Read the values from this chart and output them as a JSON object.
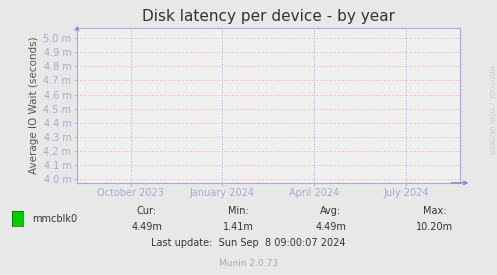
{
  "title": "Disk latency per device - by year",
  "ylabel": "Average IO Wait (seconds)",
  "yticks": [
    4.0,
    4.1,
    4.2,
    4.3,
    4.4,
    4.5,
    4.6,
    4.7,
    4.8,
    4.9,
    5.0
  ],
  "ytick_labels": [
    "4.0 m",
    "4.1 m",
    "4.2 m",
    "4.3 m",
    "4.4 m",
    "4.5 m",
    "4.6 m",
    "4.7 m",
    "4.8 m",
    "4.9 m",
    "5.0 m"
  ],
  "ylim": [
    3.975,
    5.075
  ],
  "xtick_labels": [
    "October 2023",
    "January 2024",
    "April 2024",
    "July 2024"
  ],
  "xtick_positions": [
    0.14,
    0.38,
    0.62,
    0.86
  ],
  "background_color": "#e8e8e8",
  "plot_bg_color": "#f0f0f0",
  "grid_color": "#ffaaaa",
  "grid_color_v": "#aaaacc",
  "title_color": "#333333",
  "axis_color": "#aaaacc",
  "legend_label": "mmcblk0",
  "legend_color": "#00cc00",
  "stats_cur": "4.49m",
  "stats_min": "1.41m",
  "stats_avg": "4.49m",
  "stats_max": "10.20m",
  "last_update": "Last update:  Sun Sep  8 09:00:07 2024",
  "munin_version": "Munin 2.0.73",
  "watermark": "RRDTOOL / TOBI OETIKER",
  "title_fontsize": 11,
  "tick_fontsize": 7,
  "ylabel_fontsize": 7.5,
  "stats_fontsize": 7,
  "watermark_color": "#cccccc"
}
